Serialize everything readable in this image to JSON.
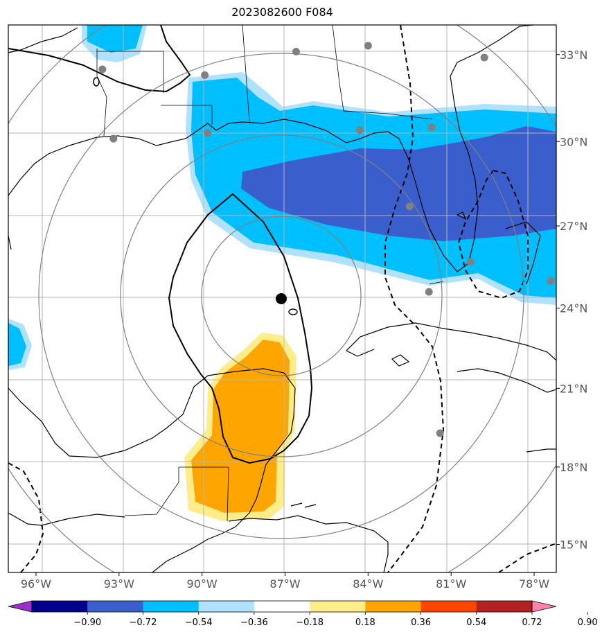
{
  "title": "2023082600 F084",
  "map": {
    "lon_range": [
      -97.0,
      -77.2
    ],
    "lat_range": [
      13.9,
      34.0
    ],
    "lon_ticks": [
      {
        "value": -96,
        "label": "96°W"
      },
      {
        "value": -93,
        "label": "93°W"
      },
      {
        "value": -90,
        "label": "90°W"
      },
      {
        "value": -87,
        "label": "87°W"
      },
      {
        "value": -84,
        "label": "84°W"
      },
      {
        "value": -81,
        "label": "81°W"
      },
      {
        "value": -78,
        "label": "78°W"
      }
    ],
    "lat_ticks": [
      {
        "value": 33,
        "label": "33°N"
      },
      {
        "value": 30,
        "label": "30°N"
      },
      {
        "value": 27,
        "label": "27°N"
      },
      {
        "value": 24,
        "label": "24°N"
      },
      {
        "value": 21,
        "label": "21°N"
      },
      {
        "value": 18,
        "label": "18°N"
      },
      {
        "value": 15,
        "label": "15°N"
      }
    ],
    "center": {
      "lon": -87.0,
      "lat": 24.0
    },
    "range_rings_deg": [
      3,
      6,
      9,
      12
    ],
    "stations": [
      {
        "lon": -93.6,
        "lat": 32.5
      },
      {
        "lon": -89.9,
        "lat": 32.3
      },
      {
        "lon": -86.6,
        "lat": 33.1
      },
      {
        "lon": -84.0,
        "lat": 33.3
      },
      {
        "lon": -79.8,
        "lat": 32.9
      },
      {
        "lon": -93.2,
        "lat": 30.1
      },
      {
        "lon": -89.8,
        "lat": 30.3
      },
      {
        "lon": -84.3,
        "lat": 30.4
      },
      {
        "lon": -81.7,
        "lat": 30.5
      },
      {
        "lon": -82.5,
        "lat": 27.7
      },
      {
        "lon": -80.3,
        "lat": 25.7
      },
      {
        "lon": -81.8,
        "lat": 24.6
      },
      {
        "lon": -77.4,
        "lat": 25.0
      },
      {
        "lon": -81.4,
        "lat": 19.3
      }
    ]
  },
  "colorbar": {
    "levels": [
      -0.9,
      -0.72,
      -0.54,
      -0.36,
      -0.18,
      0.18,
      0.36,
      0.54,
      0.72,
      0.9
    ],
    "labels": [
      "−0.90",
      "−0.72",
      "−0.54",
      "−0.36",
      "−0.18",
      "0.18",
      "0.36",
      "0.54",
      "0.72",
      "0.90"
    ],
    "colors": [
      "#9932cc",
      "#00008b",
      "#3a5fcd",
      "#00bfff",
      "#b0e2ff",
      "#ffffff",
      "#ffec8b",
      "#ffa500",
      "#ff4500",
      "#b22222",
      "#ff82ab"
    ]
  }
}
